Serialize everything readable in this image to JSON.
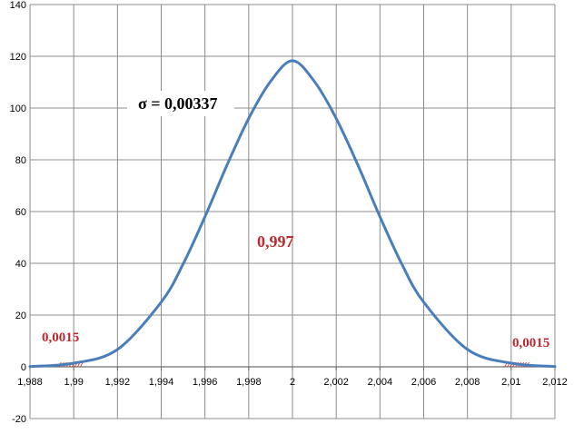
{
  "chart_data": {
    "type": "line",
    "x_ticks": [
      "1,988",
      "1,99",
      "1,992",
      "1,994",
      "1,996",
      "1,998",
      "2",
      "2,002",
      "2,004",
      "2,006",
      "2,008",
      "2,01",
      "2,012"
    ],
    "y_ticks": [
      "-20",
      "0",
      "20",
      "40",
      "60",
      "80",
      "100",
      "120",
      "140"
    ],
    "xlim": [
      1.988,
      2.012
    ],
    "ylim": [
      -20,
      140
    ],
    "grid": true,
    "series": [
      {
        "color": "#4a7ebb",
        "x": [
          1.988,
          1.99,
          1.992,
          1.994,
          1.995,
          1.996,
          1.997,
          1.998,
          1.999,
          2.0,
          2.001,
          2.002,
          2.003,
          2.004,
          2.005,
          2.006,
          2.008,
          2.01,
          2.012
        ],
        "y": [
          0.1,
          1.4,
          6.7,
          25.0,
          39.7,
          58.0,
          77.8,
          96.0,
          110.3,
          118.3,
          110.3,
          96.0,
          77.8,
          58.0,
          39.7,
          25.0,
          6.7,
          1.4,
          0.1
        ]
      }
    ],
    "annotations": [
      {
        "text": "σ = 0,00337",
        "color": "#000000"
      },
      {
        "text": "0,997",
        "color": "#c0282d"
      },
      {
        "text": "0,0015",
        "color": "#c0282d"
      },
      {
        "text": "0,0015",
        "color": "#c0282d"
      }
    ]
  }
}
